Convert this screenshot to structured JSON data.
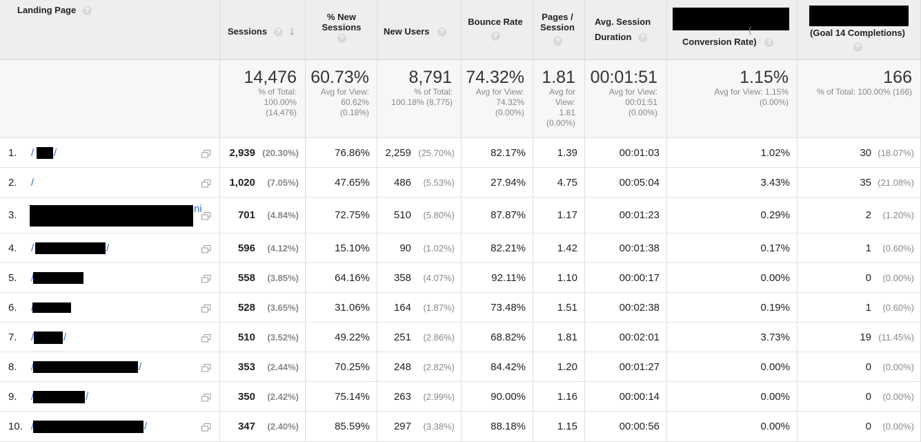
{
  "headers": {
    "landing_page": "Landing Page",
    "sessions": "Sessions",
    "new_sessions_l1": "% New",
    "new_sessions_l2": "Sessions",
    "new_users": "New Users",
    "bounce_rate": "Bounce Rate",
    "pages_l1": "Pages /",
    "pages_l2": "Session",
    "duration_l1": "Avg. Session",
    "duration_l2": "Duration",
    "conv_rate_frag": "Conversion Rate)",
    "conv_rate_paren": "(",
    "goal_completions": "(Goal 14 Completions)",
    "help_glyph": "?",
    "sort_arrow": "↓"
  },
  "totals": {
    "sessions": {
      "value": "14,476",
      "l1": "% of Total:",
      "l2": "100.00%",
      "l3": "(14,476)"
    },
    "new_sessions": {
      "value": "60.73%",
      "l1": "Avg for View:",
      "l2": "60.62%",
      "l3": "(0.18%)"
    },
    "new_users": {
      "value": "8,791",
      "l1": "% of Total:",
      "l2": "100.18% (8,775)"
    },
    "bounce_rate": {
      "value": "74.32%",
      "l1": "Avg for View:",
      "l2": "74.32%",
      "l3": "(0.00%)"
    },
    "pages": {
      "value": "1.81",
      "l1": "Avg for",
      "l2": "View:",
      "l3": "1.81",
      "l4": "(0.00%)"
    },
    "duration": {
      "value": "00:01:51",
      "l1": "Avg for View:",
      "l2": "00:01:51",
      "l3": "(0.00%)"
    },
    "conv_rate": {
      "value": "1.15%",
      "l1": "Avg for View: 1.15%",
      "l2": "(0.00%)"
    },
    "goal": {
      "value": "166",
      "l1": "% of Total: 100.00% (166)"
    }
  },
  "rows": [
    {
      "num": "1.",
      "page_prefix": "/",
      "page_suffix": "/",
      "sessions": "2,939",
      "sessions_pct": "(20.30%)",
      "new_sessions": "76.86%",
      "new_users": "2,259",
      "new_users_pct": "(25.70%)",
      "bounce": "82.17%",
      "pages": "1.39",
      "duration": "00:01:03",
      "conv": "1.02%",
      "goal": "30",
      "goal_pct": "(18.07%)"
    },
    {
      "num": "2.",
      "page_prefix": "/",
      "page_suffix": "",
      "sessions": "1,020",
      "sessions_pct": "(7.05%)",
      "new_sessions": "47.65%",
      "new_users": "486",
      "new_users_pct": "(5.53%)",
      "bounce": "27.94%",
      "pages": "4.75",
      "duration": "00:05:04",
      "conv": "3.43%",
      "goal": "35",
      "goal_pct": "(21.08%)"
    },
    {
      "num": "3.",
      "page_prefix": "",
      "page_suffix": "ni",
      "sessions": "701",
      "sessions_pct": "(4.84%)",
      "new_sessions": "72.75%",
      "new_users": "510",
      "new_users_pct": "(5.80%)",
      "bounce": "87.87%",
      "pages": "1.17",
      "duration": "00:01:23",
      "conv": "0.29%",
      "goal": "2",
      "goal_pct": "(1.20%)"
    },
    {
      "num": "4.",
      "page_prefix": "/",
      "page_suffix": "/",
      "sessions": "596",
      "sessions_pct": "(4.12%)",
      "new_sessions": "15.10%",
      "new_users": "90",
      "new_users_pct": "(1.02%)",
      "bounce": "82.21%",
      "pages": "1.42",
      "duration": "00:01:38",
      "conv": "0.17%",
      "goal": "1",
      "goal_pct": "(0.60%)"
    },
    {
      "num": "5.",
      "page_prefix": "/",
      "page_suffix": "",
      "sessions": "558",
      "sessions_pct": "(3.85%)",
      "new_sessions": "64.16%",
      "new_users": "358",
      "new_users_pct": "(4.07%)",
      "bounce": "92.11%",
      "pages": "1.10",
      "duration": "00:00:17",
      "conv": "0.00%",
      "goal": "0",
      "goal_pct": "(0.00%)"
    },
    {
      "num": "6.",
      "page_prefix": "/",
      "page_suffix": "",
      "sessions": "528",
      "sessions_pct": "(3.65%)",
      "new_sessions": "31.06%",
      "new_users": "164",
      "new_users_pct": "(1.87%)",
      "bounce": "73.48%",
      "pages": "1.51",
      "duration": "00:02:38",
      "conv": "0.19%",
      "goal": "1",
      "goal_pct": "(0.60%)"
    },
    {
      "num": "7.",
      "page_prefix": "/",
      "page_suffix": "/",
      "sessions": "510",
      "sessions_pct": "(3.52%)",
      "new_sessions": "49.22%",
      "new_users": "251",
      "new_users_pct": "(2.86%)",
      "bounce": "68.82%",
      "pages": "1.81",
      "duration": "00:02:01",
      "conv": "3.73%",
      "goal": "19",
      "goal_pct": "(11.45%)"
    },
    {
      "num": "8.",
      "page_prefix": "/",
      "page_suffix": "/",
      "sessions": "353",
      "sessions_pct": "(2.44%)",
      "new_sessions": "70.25%",
      "new_users": "248",
      "new_users_pct": "(2.82%)",
      "bounce": "84.42%",
      "pages": "1.20",
      "duration": "00:01:27",
      "conv": "0.00%",
      "goal": "0",
      "goal_pct": "(0.00%)"
    },
    {
      "num": "9.",
      "page_prefix": "/",
      "page_suffix": "/",
      "sessions": "350",
      "sessions_pct": "(2.42%)",
      "new_sessions": "75.14%",
      "new_users": "263",
      "new_users_pct": "(2.99%)",
      "bounce": "90.00%",
      "pages": "1.16",
      "duration": "00:00:14",
      "conv": "0.00%",
      "goal": "0",
      "goal_pct": "(0.00%)"
    },
    {
      "num": "10.",
      "page_prefix": "/",
      "page_suffix": "/",
      "sessions": "347",
      "sessions_pct": "(2.40%)",
      "new_sessions": "85.59%",
      "new_users": "297",
      "new_users_pct": "(3.38%)",
      "bounce": "88.18%",
      "pages": "1.15",
      "duration": "00:00:56",
      "conv": "0.00%",
      "goal": "0",
      "goal_pct": "(0.00%)"
    }
  ]
}
